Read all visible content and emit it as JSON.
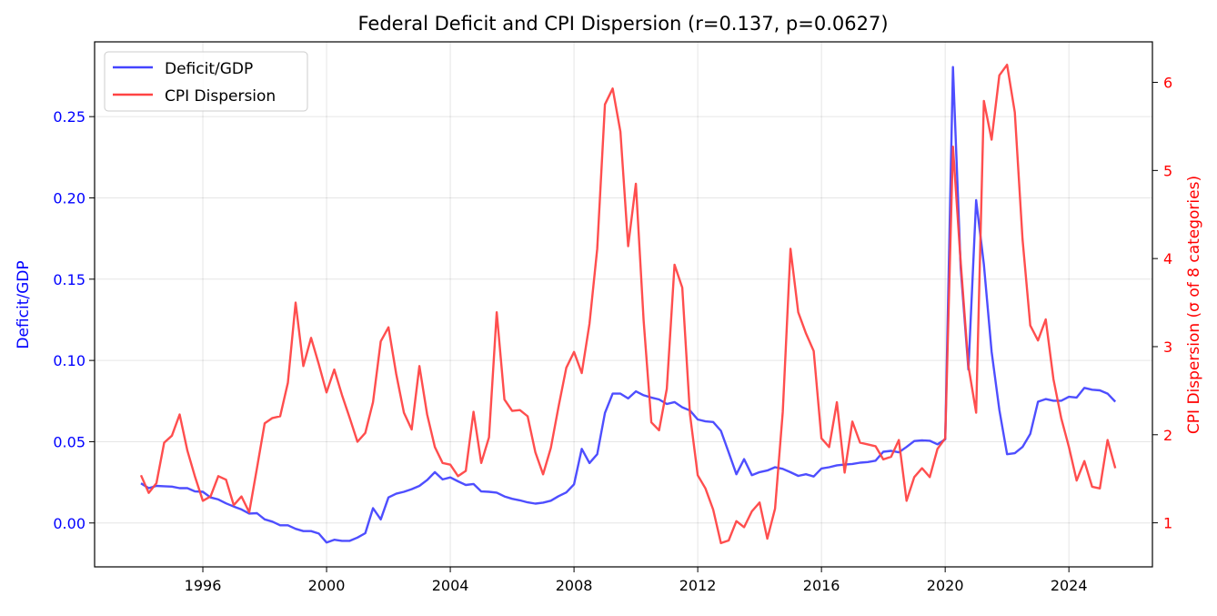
{
  "chart_data": {
    "type": "line",
    "title": "Federal Deficit and CPI Dispersion (r=0.137, p=0.0627)",
    "ylabel_left": "Deficit/GDP",
    "ylabel_right": "CPI Dispersion (σ of 8 categories)",
    "xlim": [
      1992.5,
      2026.7
    ],
    "ylim_left": [
      -0.027,
      0.296
    ],
    "ylim_right": [
      0.5,
      6.46
    ],
    "xticks": [
      1996,
      2000,
      2004,
      2008,
      2012,
      2016,
      2020,
      2024
    ],
    "yticks_left": [
      "0.00",
      "0.05",
      "0.10",
      "0.15",
      "0.20",
      "0.25"
    ],
    "yticks_right": [
      "1",
      "2",
      "3",
      "4",
      "5",
      "6"
    ],
    "grid": true,
    "legend_placement": "upper-left",
    "x": [
      1994,
      1994.25,
      1994.5,
      1994.75,
      1995,
      1995.25,
      1995.5,
      1995.75,
      1996,
      1996.25,
      1996.5,
      1996.75,
      1997,
      1997.25,
      1997.5,
      1997.75,
      1998,
      1998.25,
      1998.5,
      1998.75,
      1999,
      1999.25,
      1999.5,
      1999.75,
      2000,
      2000.25,
      2000.5,
      2000.75,
      2001,
      2001.25,
      2001.5,
      2001.75,
      2002,
      2002.25,
      2002.5,
      2002.75,
      2003,
      2003.25,
      2003.5,
      2003.75,
      2004,
      2004.25,
      2004.5,
      2004.75,
      2005,
      2005.25,
      2005.5,
      2005.75,
      2006,
      2006.25,
      2006.5,
      2006.75,
      2007,
      2007.25,
      2007.5,
      2007.75,
      2008,
      2008.25,
      2008.5,
      2008.75,
      2009,
      2009.25,
      2009.5,
      2009.75,
      2010,
      2010.25,
      2010.5,
      2010.75,
      2011,
      2011.25,
      2011.5,
      2011.75,
      2012,
      2012.25,
      2012.5,
      2012.75,
      2013,
      2013.25,
      2013.5,
      2013.75,
      2014,
      2014.25,
      2014.5,
      2014.75,
      2015,
      2015.25,
      2015.5,
      2015.75,
      2016,
      2016.25,
      2016.5,
      2016.75,
      2017,
      2017.25,
      2017.5,
      2017.75,
      2018,
      2018.25,
      2018.5,
      2018.75,
      2019,
      2019.25,
      2019.5,
      2019.75,
      2020,
      2020.25,
      2020.5,
      2020.75,
      2021,
      2021.25,
      2021.5,
      2021.75,
      2022,
      2022.25,
      2022.5,
      2022.75,
      2023,
      2023.25,
      2023.5,
      2023.75,
      2024,
      2024.25,
      2024.5,
      2024.75,
      2025,
      2025.25,
      2025.5
    ],
    "series": [
      {
        "name": "Deficit/GDP",
        "axis": "left",
        "color": "#4444ff",
        "values": [
          0.0244,
          0.0214,
          0.0228,
          0.0226,
          0.0224,
          0.0214,
          0.0214,
          0.0194,
          0.0192,
          0.0157,
          0.0145,
          0.0121,
          0.0101,
          0.0083,
          0.0058,
          0.006,
          0.0022,
          0.0008,
          -0.0014,
          -0.0014,
          -0.0036,
          -0.005,
          -0.005,
          -0.0065,
          -0.012,
          -0.0103,
          -0.011,
          -0.011,
          -0.009,
          -0.0063,
          0.0091,
          0.0022,
          0.0157,
          0.018,
          0.0192,
          0.0208,
          0.0228,
          0.0264,
          0.0313,
          0.0268,
          0.028,
          0.0256,
          0.0234,
          0.024,
          0.0194,
          0.0192,
          0.0187,
          0.0163,
          0.0149,
          0.0139,
          0.0127,
          0.0119,
          0.0125,
          0.0137,
          0.0165,
          0.0188,
          0.0238,
          0.0456,
          0.0369,
          0.0423,
          0.0677,
          0.0796,
          0.0796,
          0.0766,
          0.081,
          0.0786,
          0.0772,
          0.076,
          0.0732,
          0.0744,
          0.0712,
          0.0692,
          0.0637,
          0.0625,
          0.0621,
          0.0567,
          0.0435,
          0.03,
          0.0393,
          0.0294,
          0.0313,
          0.0323,
          0.0343,
          0.0333,
          0.0312,
          0.029,
          0.03,
          0.0286,
          0.0335,
          0.0343,
          0.0355,
          0.0359,
          0.0363,
          0.0371,
          0.0375,
          0.0383,
          0.0438,
          0.0444,
          0.0435,
          0.0468,
          0.0504,
          0.0508,
          0.0506,
          0.0484,
          0.0514,
          0.2805,
          0.157,
          0.0944,
          0.1986,
          0.159,
          0.1054,
          0.0696,
          0.0423,
          0.0429,
          0.0468,
          0.0548,
          0.0746,
          0.0762,
          0.0752,
          0.0752,
          0.0776,
          0.0772,
          0.0831,
          0.082,
          0.0816,
          0.0796,
          0.0746
        ]
      },
      {
        "name": "CPI Dispersion",
        "axis": "right",
        "color": "#ff4444",
        "values": [
          1.54,
          1.34,
          1.45,
          1.91,
          1.99,
          2.23,
          1.82,
          1.52,
          1.25,
          1.3,
          1.53,
          1.49,
          1.2,
          1.3,
          1.12,
          1.62,
          2.13,
          2.19,
          2.21,
          2.59,
          3.5,
          2.78,
          3.1,
          2.8,
          2.48,
          2.74,
          2.45,
          2.19,
          1.92,
          2.02,
          2.37,
          3.06,
          3.22,
          2.69,
          2.25,
          2.06,
          2.78,
          2.23,
          1.86,
          1.68,
          1.66,
          1.53,
          1.59,
          2.26,
          1.68,
          1.97,
          3.39,
          2.4,
          2.27,
          2.28,
          2.21,
          1.8,
          1.55,
          1.85,
          2.32,
          2.76,
          2.94,
          2.7,
          3.26,
          4.11,
          5.75,
          5.93,
          5.44,
          4.14,
          4.85,
          3.3,
          2.14,
          2.05,
          2.52,
          3.93,
          3.67,
          2.23,
          1.54,
          1.39,
          1.15,
          0.77,
          0.8,
          1.02,
          0.95,
          1.13,
          1.23,
          0.82,
          1.16,
          2.26,
          4.11,
          3.39,
          3.15,
          2.95,
          1.96,
          1.86,
          2.37,
          1.57,
          2.15,
          1.91,
          1.89,
          1.87,
          1.72,
          1.75,
          1.94,
          1.25,
          1.52,
          1.62,
          1.52,
          1.84,
          1.96,
          5.27,
          3.96,
          2.78,
          2.25,
          5.79,
          5.35,
          6.08,
          6.2,
          5.66,
          4.22,
          3.24,
          3.07,
          3.31,
          2.63,
          2.19,
          1.86,
          1.48,
          1.7,
          1.41,
          1.39,
          1.94,
          1.62
        ]
      }
    ],
    "left_axis_color": "#0000ff",
    "right_axis_color": "#ff0000"
  }
}
